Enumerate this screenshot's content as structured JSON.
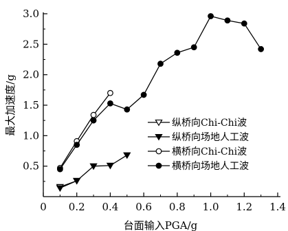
{
  "chart_data": {
    "type": "line",
    "xlabel": "台面输入PGA/g",
    "ylabel": "最大加速度/g",
    "xlim": [
      0,
      1.4
    ],
    "ylim": [
      0,
      3.0
    ],
    "x_ticks": [
      {
        "value": 0,
        "label": "0"
      },
      {
        "value": 0.2,
        "label": "0.2"
      },
      {
        "value": 0.4,
        "label": "0.4"
      },
      {
        "value": 0.6,
        "label": "0.6"
      },
      {
        "value": 0.8,
        "label": "0.8"
      },
      {
        "value": 1.0,
        "label": "1.0"
      },
      {
        "value": 1.2,
        "label": "1.2"
      },
      {
        "value": 1.4,
        "label": "1.4"
      }
    ],
    "y_ticks": [
      {
        "value": 0.5,
        "label": "0.5"
      },
      {
        "value": 1.0,
        "label": "1.0"
      },
      {
        "value": 1.5,
        "label": "1.5"
      },
      {
        "value": 2.0,
        "label": "2.0"
      },
      {
        "value": 2.5,
        "label": "2.5"
      },
      {
        "value": 3.0,
        "label": "3.0"
      }
    ],
    "grid": false,
    "legend_position": "center-right",
    "series": [
      {
        "name": "纵桥向Chi-Chi波",
        "marker": "triangle-down-open",
        "x": [
          0.1,
          0.2
        ],
        "y": [
          0.16,
          0.26
        ]
      },
      {
        "name": "纵桥向场地人工波",
        "marker": "triangle-down-filled",
        "x": [
          0.1,
          0.2,
          0.3,
          0.4,
          0.5
        ],
        "y": [
          0.14,
          0.26,
          0.5,
          0.51,
          0.68
        ]
      },
      {
        "name": "横桥向Chi-Chi波",
        "marker": "circle-open",
        "x": [
          0.1,
          0.2,
          0.3,
          0.4
        ],
        "y": [
          0.47,
          0.91,
          1.34,
          1.7
        ]
      },
      {
        "name": "横桥向场地人工波",
        "marker": "circle-filled",
        "x": [
          0.1,
          0.2,
          0.3,
          0.4,
          0.5,
          0.6,
          0.7,
          0.8,
          0.9,
          1.0,
          1.1,
          1.2,
          1.3
        ],
        "y": [
          0.45,
          0.85,
          1.25,
          1.53,
          1.43,
          1.67,
          2.18,
          2.36,
          2.45,
          2.96,
          2.89,
          2.84,
          2.42
        ]
      }
    ]
  }
}
